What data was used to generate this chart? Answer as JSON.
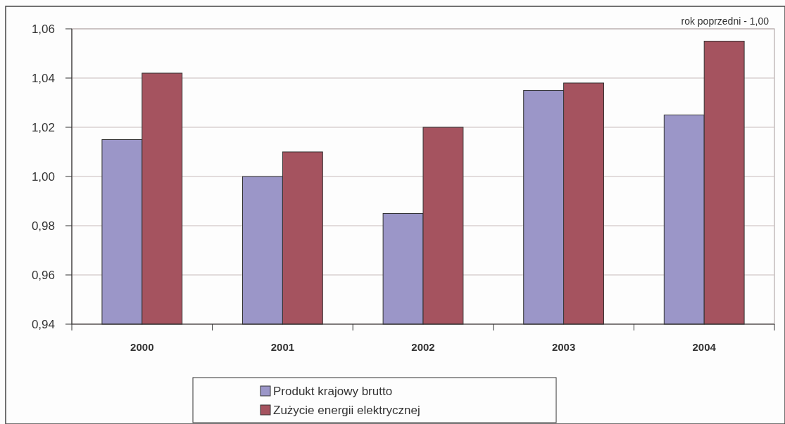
{
  "chart_data": {
    "type": "bar",
    "categories": [
      "2000",
      "2001",
      "2002",
      "2003",
      "2004"
    ],
    "series": [
      {
        "name": "Produkt krajowy brutto",
        "color": "#9b96c8",
        "values": [
          1.015,
          1.0,
          0.985,
          1.035,
          1.025
        ]
      },
      {
        "name": "Zużycie energii elektrycznej",
        "color": "#a5535f",
        "values": [
          1.042,
          1.01,
          1.02,
          1.038,
          1.055
        ]
      }
    ],
    "ylim": [
      0.94,
      1.06
    ],
    "yticks": [
      {
        "value": 0.94,
        "label": "0,94"
      },
      {
        "value": 0.96,
        "label": "0,96"
      },
      {
        "value": 0.98,
        "label": "0,98"
      },
      {
        "value": 1.0,
        "label": "1,00"
      },
      {
        "value": 1.02,
        "label": "1,02"
      },
      {
        "value": 1.04,
        "label": "1,04"
      },
      {
        "value": 1.06,
        "label": "1,06"
      }
    ],
    "grid": "y",
    "legend": "bottom",
    "annotations": [
      "rok poprzedni - 1,00"
    ]
  }
}
